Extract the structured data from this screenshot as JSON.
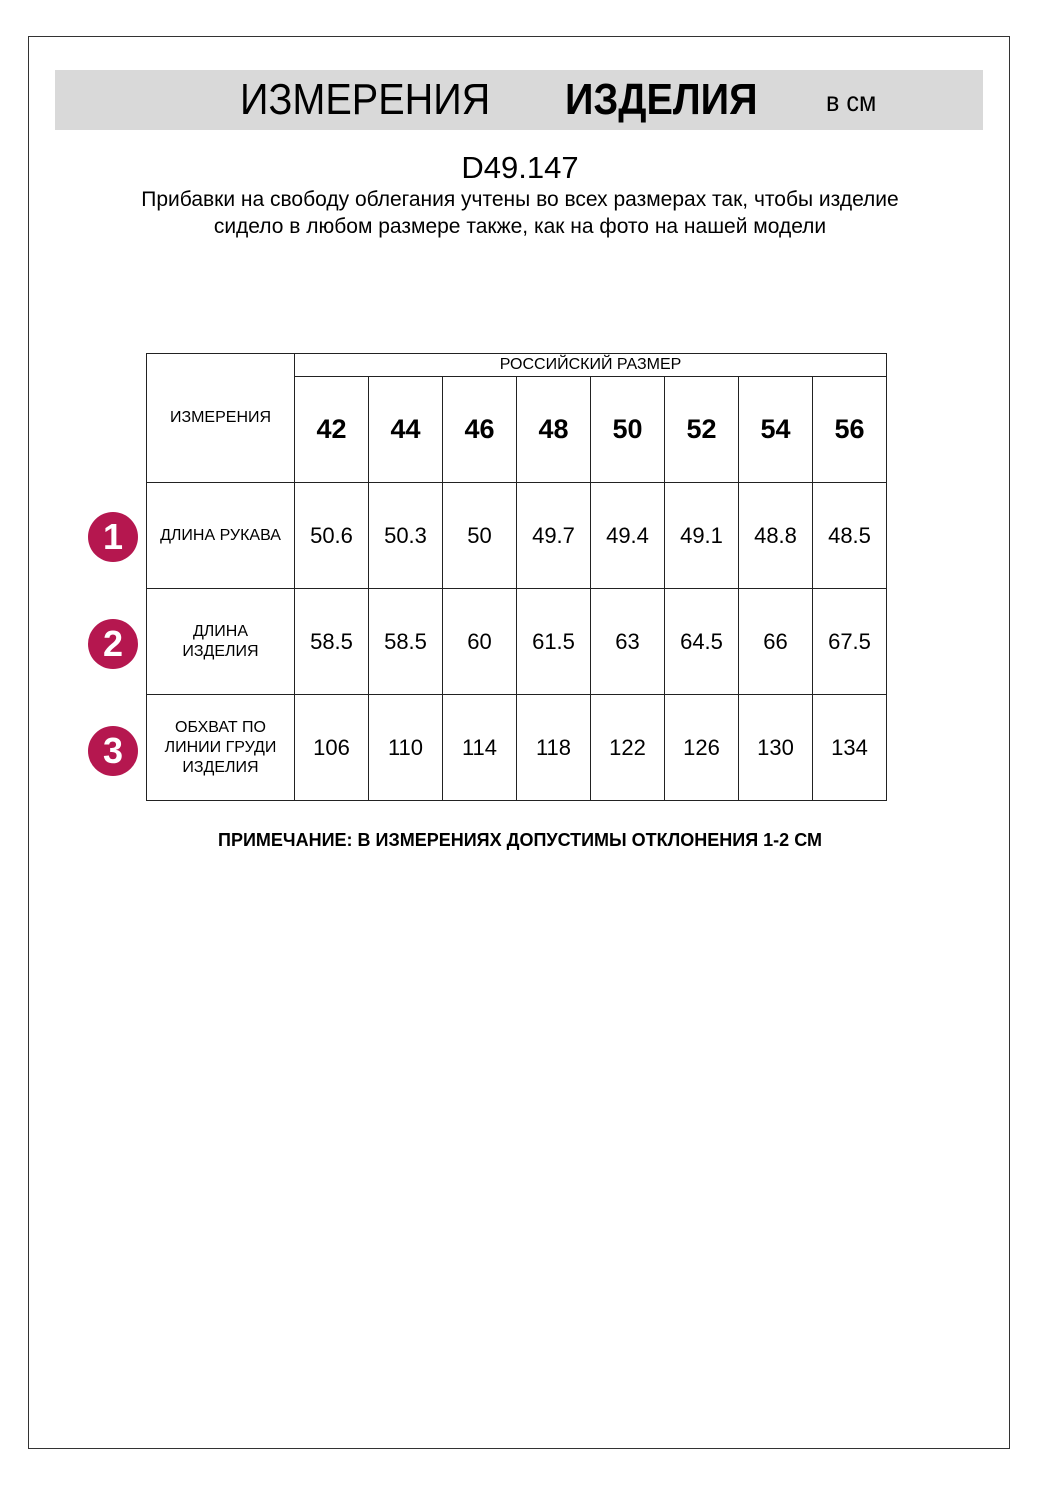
{
  "header": {
    "title_regular": "ИЗМЕРЕНИЯ",
    "title_bold": "ИЗДЕЛИЯ",
    "unit": "в см"
  },
  "product_code": "D49.147",
  "description": "Прибавки на свободу облегания учтены во всех размерах так, чтобы изделие сидело в любом размере также, как на фото на нашей модели",
  "table": {
    "measurements_header": "ИЗМЕРЕНИЯ",
    "size_group_header": "РОССИЙСКИЙ РАЗМЕР",
    "sizes": [
      "42",
      "44",
      "46",
      "48",
      "50",
      "52",
      "54",
      "56"
    ],
    "rows": [
      {
        "badge": "1",
        "label": "ДЛИНА РУКАВА",
        "values": [
          "50.6",
          "50.3",
          "50",
          "49.7",
          "49.4",
          "49.1",
          "48.8",
          "48.5"
        ]
      },
      {
        "badge": "2",
        "label": "ДЛИНА ИЗДЕЛИЯ",
        "values": [
          "58.5",
          "58.5",
          "60",
          "61.5",
          "63",
          "64.5",
          "66",
          "67.5"
        ]
      },
      {
        "badge": "3",
        "label": "ОБХВАТ ПО ЛИНИИ ГРУДИ ИЗДЕЛИЯ",
        "values": [
          "106",
          "110",
          "114",
          "118",
          "122",
          "126",
          "130",
          "134"
        ]
      }
    ]
  },
  "note": "ПРИМЕЧАНИЕ: В ИЗМЕРЕНИЯХ ДОПУСТИМЫ ОТКЛОНЕНИЯ 1-2 СМ",
  "colors": {
    "badge": "#b5174f",
    "band": "#d9d9d9"
  }
}
